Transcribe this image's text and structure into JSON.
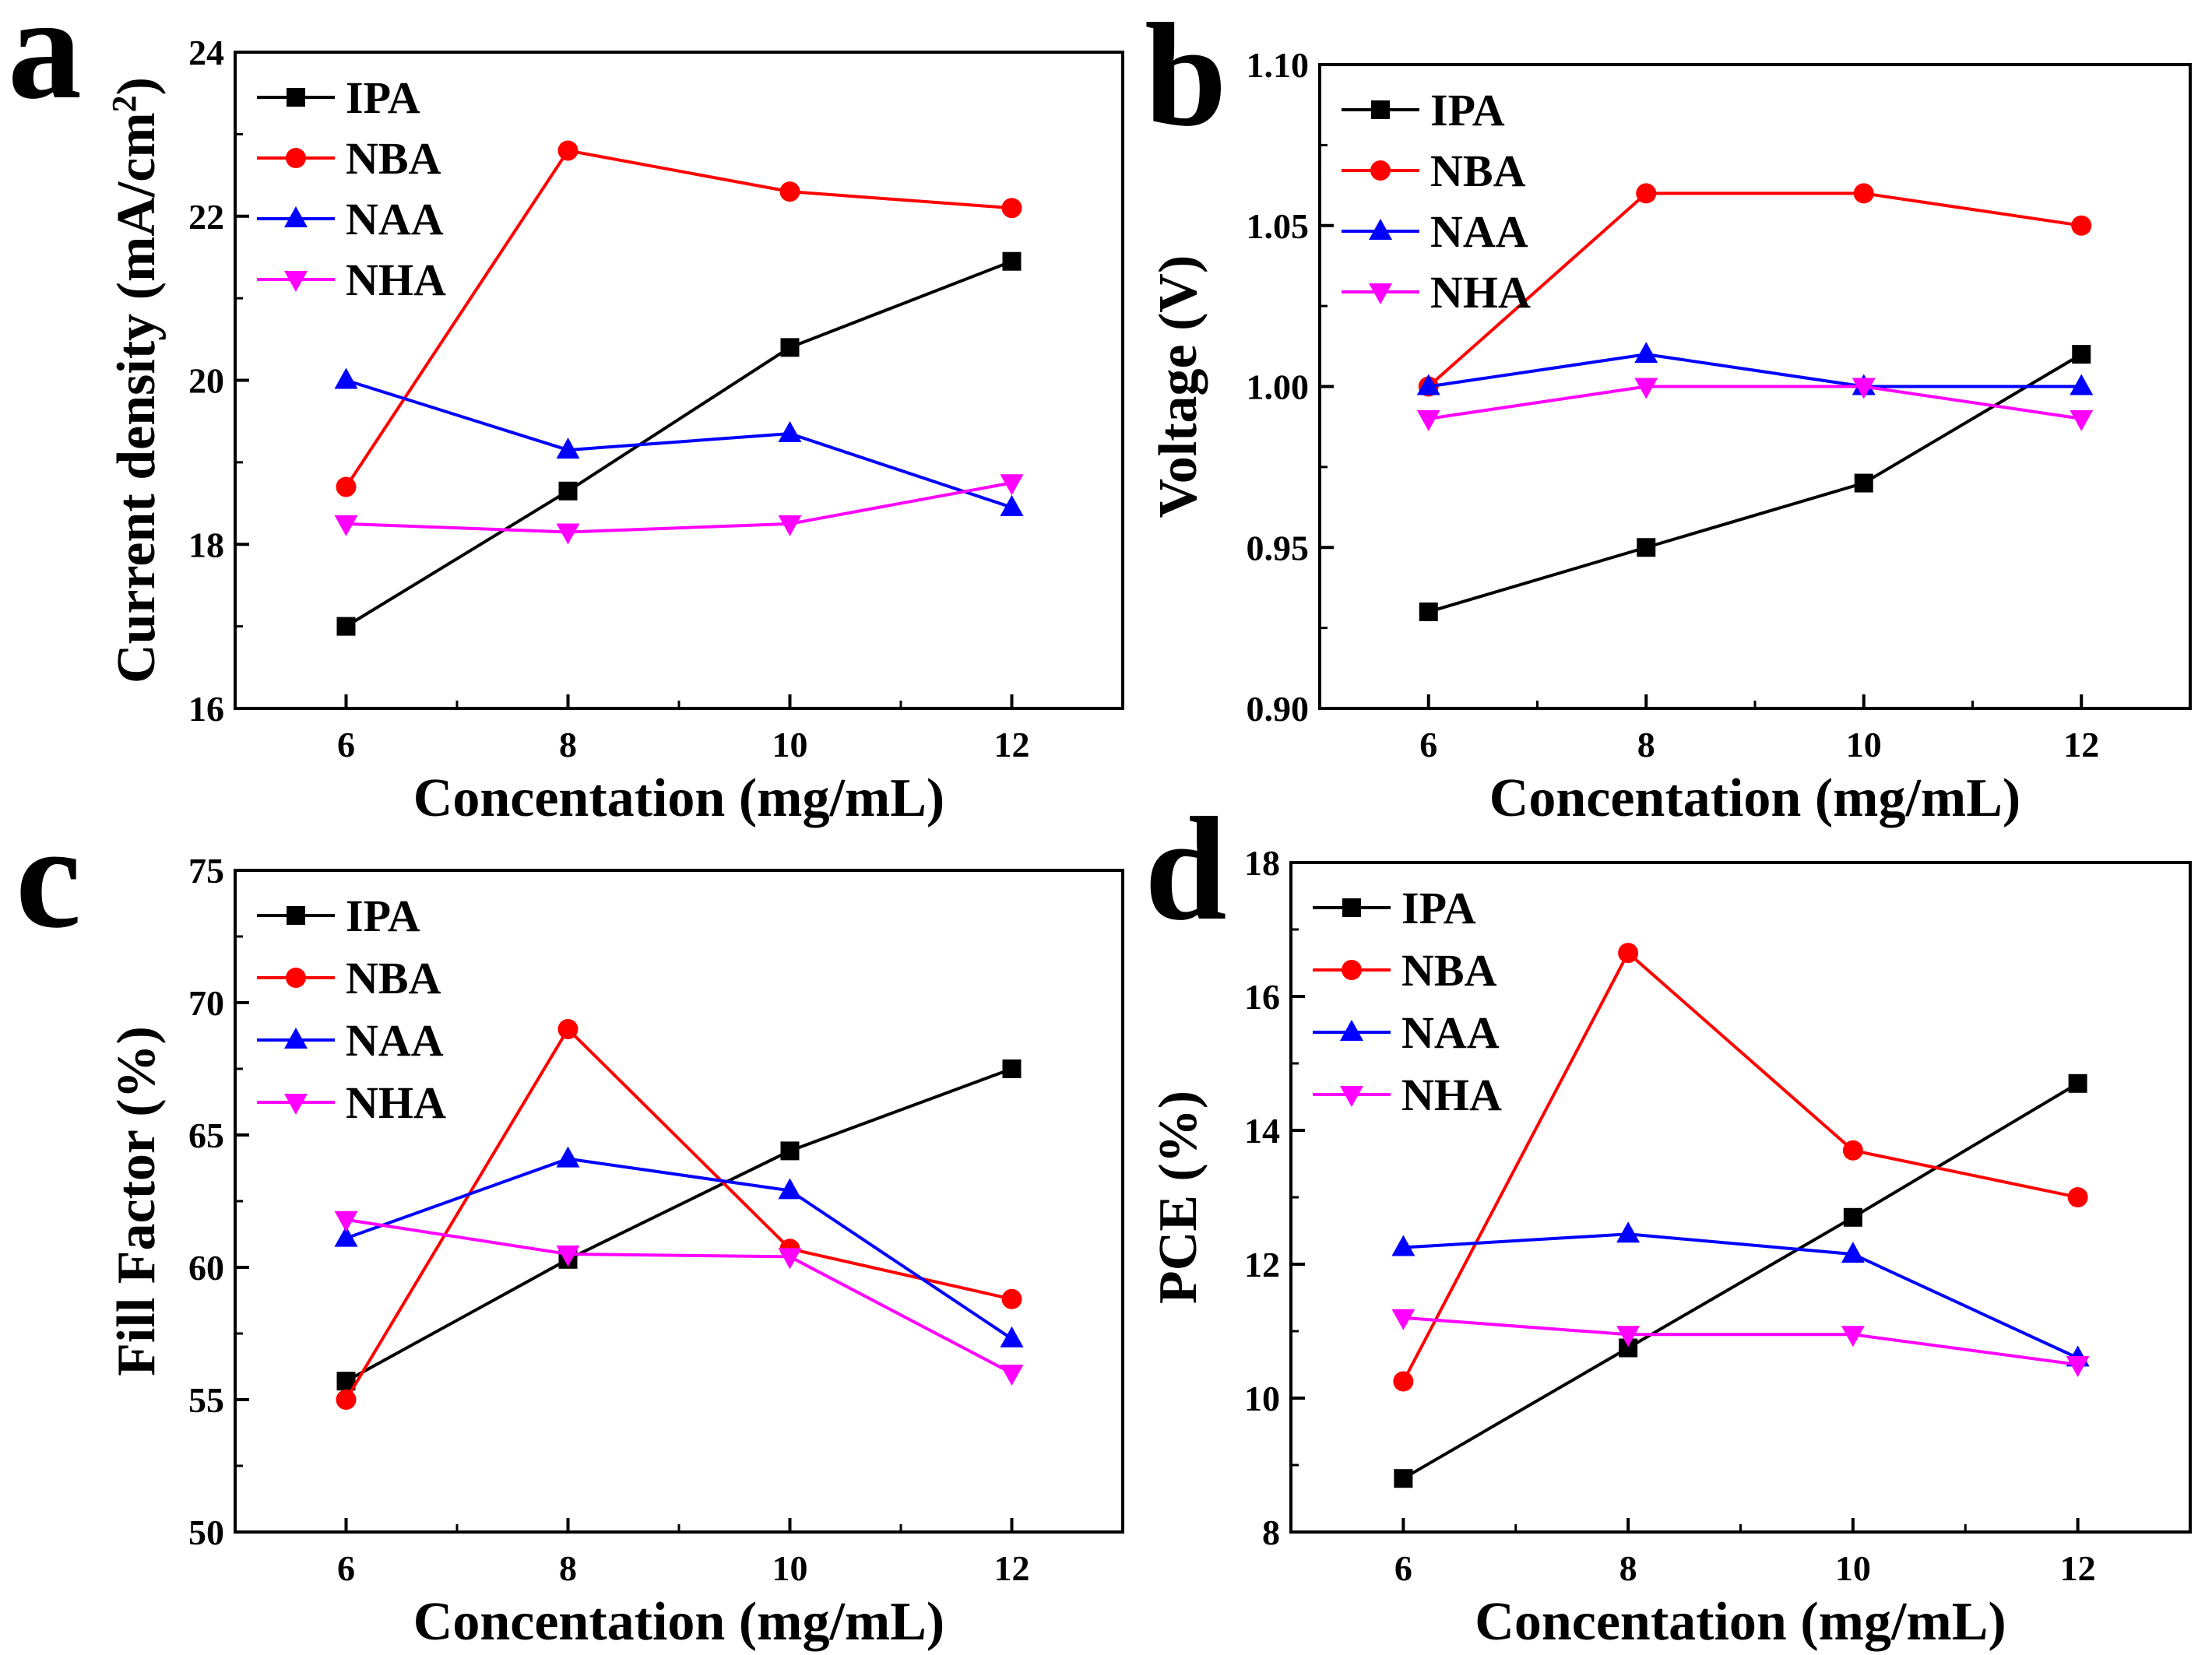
{
  "figure": {
    "series_styles": [
      {
        "name": "IPA",
        "color": "#000000",
        "marker": "square"
      },
      {
        "name": "NBA",
        "color": "#ff0000",
        "marker": "circle"
      },
      {
        "name": "NAA",
        "color": "#0000ff",
        "marker": "triangle-up"
      },
      {
        "name": "NHA",
        "color": "#ff00ff",
        "marker": "triangle-down"
      }
    ]
  },
  "chart_data": [
    {
      "panel": "a",
      "type": "line",
      "xlabel": "Concentation (mg/mL)",
      "ylabel": "Current density (mA/cm",
      "ylabel_sup": "2",
      "ylabel_tail": ")",
      "x": [
        6,
        8,
        10,
        12
      ],
      "xlim": [
        5,
        13
      ],
      "ylim": [
        16,
        24
      ],
      "xticks": [
        6,
        8,
        10,
        12
      ],
      "yticks": [
        16,
        18,
        20,
        22,
        24
      ],
      "ytick_labels": [
        "16",
        "18",
        "20",
        "22",
        "24"
      ],
      "legend_position": "top-left",
      "series": [
        {
          "name": "IPA",
          "values": [
            17.0,
            18.65,
            20.4,
            21.45
          ]
        },
        {
          "name": "NBA",
          "values": [
            18.7,
            22.8,
            22.3,
            22.1
          ]
        },
        {
          "name": "NAA",
          "values": [
            20.0,
            19.15,
            19.35,
            18.45
          ]
        },
        {
          "name": "NHA",
          "values": [
            18.25,
            18.15,
            18.25,
            18.75
          ]
        }
      ]
    },
    {
      "panel": "b",
      "type": "line",
      "xlabel": "Concentation (mg/mL)",
      "ylabel": "Voltage (V)",
      "x": [
        6,
        8,
        10,
        12
      ],
      "xlim": [
        5,
        13
      ],
      "ylim": [
        0.9,
        1.1
      ],
      "xticks": [
        6,
        8,
        10,
        12
      ],
      "yticks": [
        0.9,
        0.95,
        1.0,
        1.05,
        1.1
      ],
      "ytick_labels": [
        "0.90",
        "0.95",
        "1.00",
        "1.05",
        "1.10"
      ],
      "legend_position": "top-left",
      "series": [
        {
          "name": "IPA",
          "values": [
            0.93,
            0.95,
            0.97,
            1.01
          ]
        },
        {
          "name": "NBA",
          "values": [
            1.0,
            1.06,
            1.06,
            1.05
          ]
        },
        {
          "name": "NAA",
          "values": [
            1.0,
            1.01,
            1.0,
            1.0
          ]
        },
        {
          "name": "NHA",
          "values": [
            0.99,
            1.0,
            1.0,
            0.99
          ]
        }
      ]
    },
    {
      "panel": "c",
      "type": "line",
      "xlabel": "Concentation (mg/mL)",
      "ylabel": "Fill Factor (%)",
      "x": [
        6,
        8,
        10,
        12
      ],
      "xlim": [
        5,
        13
      ],
      "ylim": [
        50,
        75
      ],
      "xticks": [
        6,
        8,
        10,
        12
      ],
      "yticks": [
        50,
        55,
        60,
        65,
        70,
        75
      ],
      "ytick_labels": [
        "50",
        "55",
        "60",
        "65",
        "70",
        "75"
      ],
      "legend_position": "top-left",
      "series": [
        {
          "name": "IPA",
          "values": [
            55.7,
            60.3,
            64.4,
            67.5
          ]
        },
        {
          "name": "NBA",
          "values": [
            55.0,
            69.0,
            60.7,
            58.8
          ]
        },
        {
          "name": "NAA",
          "values": [
            61.1,
            64.1,
            62.9,
            57.3
          ]
        },
        {
          "name": "NHA",
          "values": [
            61.8,
            60.5,
            60.4,
            56.0
          ]
        }
      ]
    },
    {
      "panel": "d",
      "type": "line",
      "xlabel": "Concentation (mg/mL)",
      "ylabel": "PCE (%)",
      "x": [
        6,
        8,
        10,
        12
      ],
      "xlim": [
        5,
        13
      ],
      "ylim": [
        8,
        18
      ],
      "xticks": [
        6,
        8,
        10,
        12
      ],
      "yticks": [
        8,
        10,
        12,
        14,
        16,
        18
      ],
      "ytick_labels": [
        "8",
        "10",
        "12",
        "14",
        "16",
        "18"
      ],
      "legend_position": "top-left",
      "series": [
        {
          "name": "IPA",
          "values": [
            8.8,
            10.75,
            12.7,
            14.7
          ]
        },
        {
          "name": "NBA",
          "values": [
            10.25,
            16.65,
            13.7,
            13.0
          ]
        },
        {
          "name": "NAA",
          "values": [
            12.25,
            12.45,
            12.15,
            10.6
          ]
        },
        {
          "name": "NHA",
          "values": [
            11.2,
            10.95,
            10.95,
            10.5
          ]
        }
      ]
    }
  ]
}
